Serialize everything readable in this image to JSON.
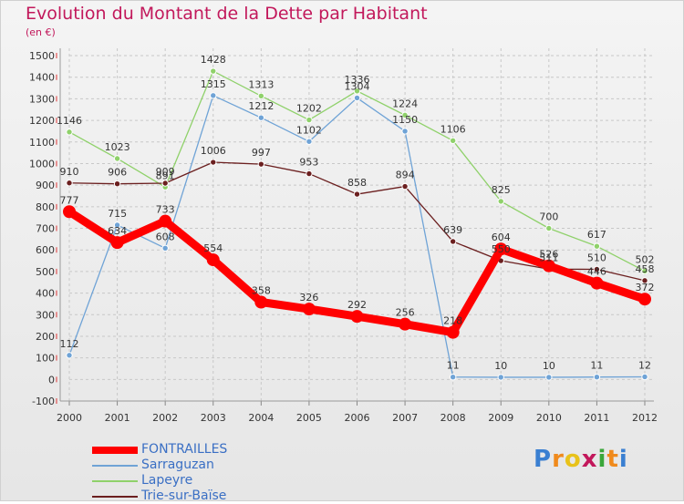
{
  "title": "Evolution du Montant de la Dette par Habitant",
  "unit": "(en €)",
  "brand": {
    "text": "Proxiti",
    "colors": [
      "#3a7fd1",
      "#f08a1c",
      "#e8c21a",
      "#c2185b",
      "#3aa63a",
      "#f08a1c",
      "#3a7fd1"
    ]
  },
  "chart_data": {
    "type": "line",
    "categories": [
      "2000",
      "2001",
      "2002",
      "2003",
      "2004",
      "2005",
      "2006",
      "2007",
      "2008",
      "2009",
      "2010",
      "2011",
      "2012"
    ],
    "ylim": [
      -100,
      1500
    ],
    "yticks": [
      -100,
      0,
      100,
      200,
      300,
      400,
      500,
      600,
      700,
      800,
      900,
      1000,
      1100,
      1200,
      1300,
      1400,
      1500
    ],
    "grid": true,
    "legend_position": "bottom-left",
    "series": [
      {
        "name": "FONTRAILLES",
        "color": "#ff0000",
        "values": [
          777,
          634,
          733,
          554,
          358,
          326,
          292,
          256,
          218,
          604,
          526,
          446,
          372
        ],
        "labels": [
          "777",
          "634",
          "733",
          "554",
          "358",
          "326",
          "292",
          "256",
          "218",
          "604",
          "526",
          "446",
          "372"
        ]
      },
      {
        "name": "Sarraguzan",
        "color": "#6fa3d6",
        "values": [
          112,
          715,
          608,
          1315,
          1212,
          1102,
          1304,
          1150,
          11,
          10,
          10,
          11,
          12
        ],
        "labels": [
          "112",
          "715",
          "608",
          "1315",
          "1212",
          "1102",
          "1304",
          "1150",
          "11",
          "10",
          "10",
          "11",
          "12"
        ]
      },
      {
        "name": "Lapeyre",
        "color": "#8fd16a",
        "values": [
          1146,
          1023,
          891,
          1428,
          1313,
          1202,
          1336,
          1224,
          1106,
          825,
          700,
          617,
          502
        ],
        "labels": [
          "1146",
          "1023",
          "891",
          "1428",
          "1313",
          "1202",
          "1336",
          "1224",
          "1106",
          "825",
          "700",
          "617",
          "502"
        ]
      },
      {
        "name": "Trie-sur-Baïse",
        "color": "#6b1f1f",
        "values": [
          910,
          906,
          909,
          1006,
          997,
          953,
          858,
          894,
          639,
          550,
          511,
          510,
          458
        ],
        "labels": [
          "910",
          "906",
          "909",
          "1006",
          "997",
          "953",
          "858",
          "894",
          "639",
          "550",
          "511",
          "510",
          "458"
        ]
      }
    ]
  }
}
